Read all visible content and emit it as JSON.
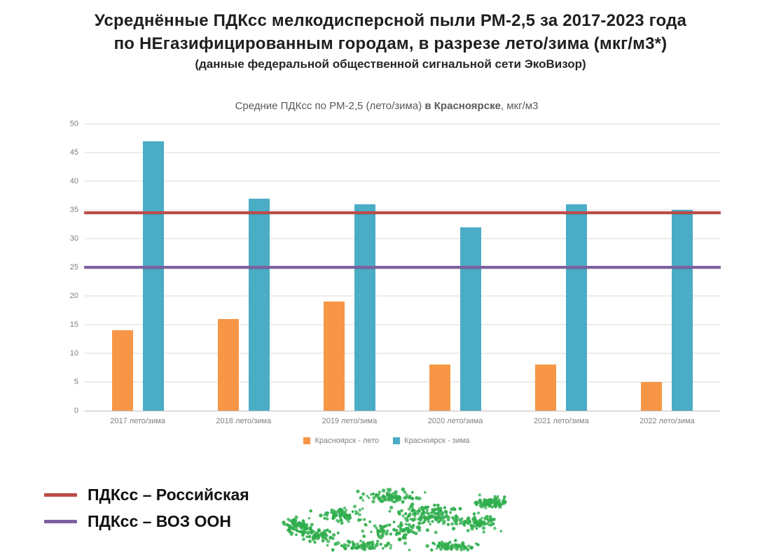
{
  "header": {
    "title_line1": "Усреднённые ПДКсс мелкодисперсной пыли РМ-2,5 за 2017-2023 года",
    "title_line2": "по НЕгазифицированным городам, в разрезе лето/зима (мкг/м3*)",
    "subtitle": "(данные федеральной общественной сигнальной сети ЭкоВизор)"
  },
  "chart_data": {
    "type": "bar",
    "title_parts": {
      "prefix": "Средние ПДКсс по РМ-2,5 (лето/зима) ",
      "bold": "в Красноярске",
      "suffix": ", мкг/м3"
    },
    "categories": [
      "2017 лето/зима",
      "2018 лето/зима",
      "2019 лето/зима",
      "2020 лето/зима",
      "2021 лето/зима",
      "2022 лето/зима"
    ],
    "series": [
      {
        "name": "Красноярск - лето",
        "color": "#F79646",
        "values": [
          14,
          16,
          19,
          8,
          8,
          5
        ]
      },
      {
        "name": "Красноярск  - зима",
        "color": "#4BACC6",
        "values": [
          47,
          37,
          36,
          32,
          36,
          35
        ]
      }
    ],
    "reference_lines": [
      {
        "label": "ПДКсс – Российская",
        "value": 34.5,
        "color": "#BE4B48"
      },
      {
        "label": "ПДКсс – ВОЗ ООН",
        "value": 25,
        "color": "#7D60A0"
      }
    ],
    "ylim": [
      0,
      50
    ],
    "ytick_step": 5,
    "grid": true,
    "legend_position": "bottom"
  },
  "decoration": {
    "name": "green-dot-scatter",
    "color": "#2FAE4D",
    "dot_count": 780
  }
}
